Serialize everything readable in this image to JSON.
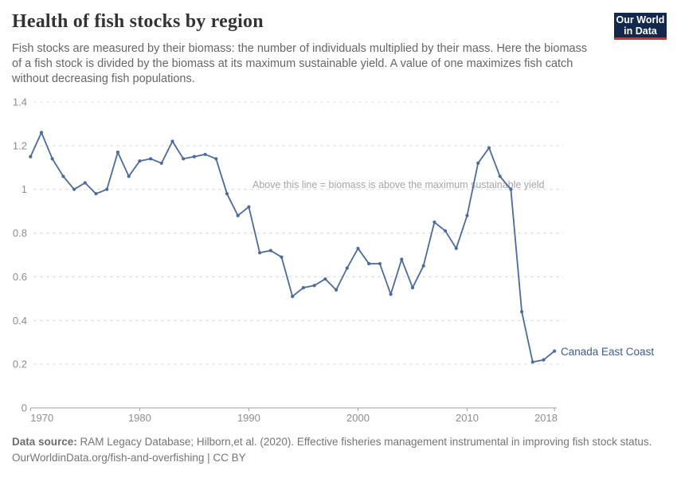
{
  "header": {
    "title": "Health of fish stocks by region",
    "subtitle_lines": [
      "Fish stocks are measured by their biomass: the number of individuals multiplied by their mass. Here the biomass",
      "of a fish stock is divided by the biomass at its maximum sustainable yield. A value of one maximizes fish catch",
      "without decreasing fish populations."
    ]
  },
  "logo": {
    "line1": "Our World",
    "line2": "in Data",
    "bg_color": "#12294d",
    "accent_color": "#c23a33"
  },
  "chart_data": {
    "type": "line",
    "title": "Health of fish stocks by region",
    "series_label": "Canada East Coast",
    "annotation": "Above this line = biomass is above the maximum sustainable yield",
    "xlabel": "",
    "ylabel": "",
    "ylim": [
      0,
      1.4
    ],
    "grid": "horizontal dashed",
    "legend_position": "end-of-line label",
    "yticks": [
      0,
      0.2,
      0.4,
      0.6,
      0.8,
      1,
      1.2,
      1.4
    ],
    "ytick_labels": [
      "0",
      "0.2",
      "0.4",
      "0.6",
      "0.8",
      "1",
      "1.2",
      "1.4"
    ],
    "xticks": [
      1970,
      1980,
      1990,
      2000,
      2010,
      2018
    ],
    "x": [
      1970,
      1971,
      1972,
      1973,
      1974,
      1975,
      1976,
      1977,
      1978,
      1979,
      1980,
      1981,
      1982,
      1983,
      1984,
      1985,
      1986,
      1987,
      1988,
      1989,
      1990,
      1991,
      1992,
      1993,
      1994,
      1995,
      1996,
      1997,
      1998,
      1999,
      2000,
      2001,
      2002,
      2003,
      2004,
      2005,
      2006,
      2007,
      2008,
      2009,
      2010,
      2011,
      2012,
      2013,
      2014,
      2015,
      2016,
      2017,
      2018
    ],
    "values": [
      1.15,
      1.26,
      1.14,
      1.06,
      1.0,
      1.03,
      0.98,
      1.0,
      1.17,
      1.06,
      1.13,
      1.14,
      1.12,
      1.22,
      1.14,
      1.15,
      1.16,
      1.14,
      0.98,
      0.88,
      0.92,
      0.71,
      0.72,
      0.69,
      0.51,
      0.55,
      0.56,
      0.59,
      0.54,
      0.64,
      0.73,
      0.66,
      0.66,
      0.52,
      0.68,
      0.55,
      0.65,
      0.85,
      0.81,
      0.73,
      0.88,
      1.12,
      1.19,
      1.06,
      1.0,
      0.44,
      0.21,
      0.22,
      0.26
    ],
    "colors": {
      "line": "#4c6a9c",
      "label": "#3d5c8f",
      "grid": "#dcdcdc",
      "axis": "#a0a0a0",
      "axis_text": "#8e8e8e",
      "annotation": "#a6a6a6"
    }
  },
  "footer": {
    "source_label": "Data source:",
    "source_text": " RAM Legacy Database; Hilborn,et al. (2020). Effective fisheries management instrumental in improving fish stock status.",
    "link": "OurWorldinData.org/fish-and-overfishing",
    "suffix": " | CC BY"
  }
}
